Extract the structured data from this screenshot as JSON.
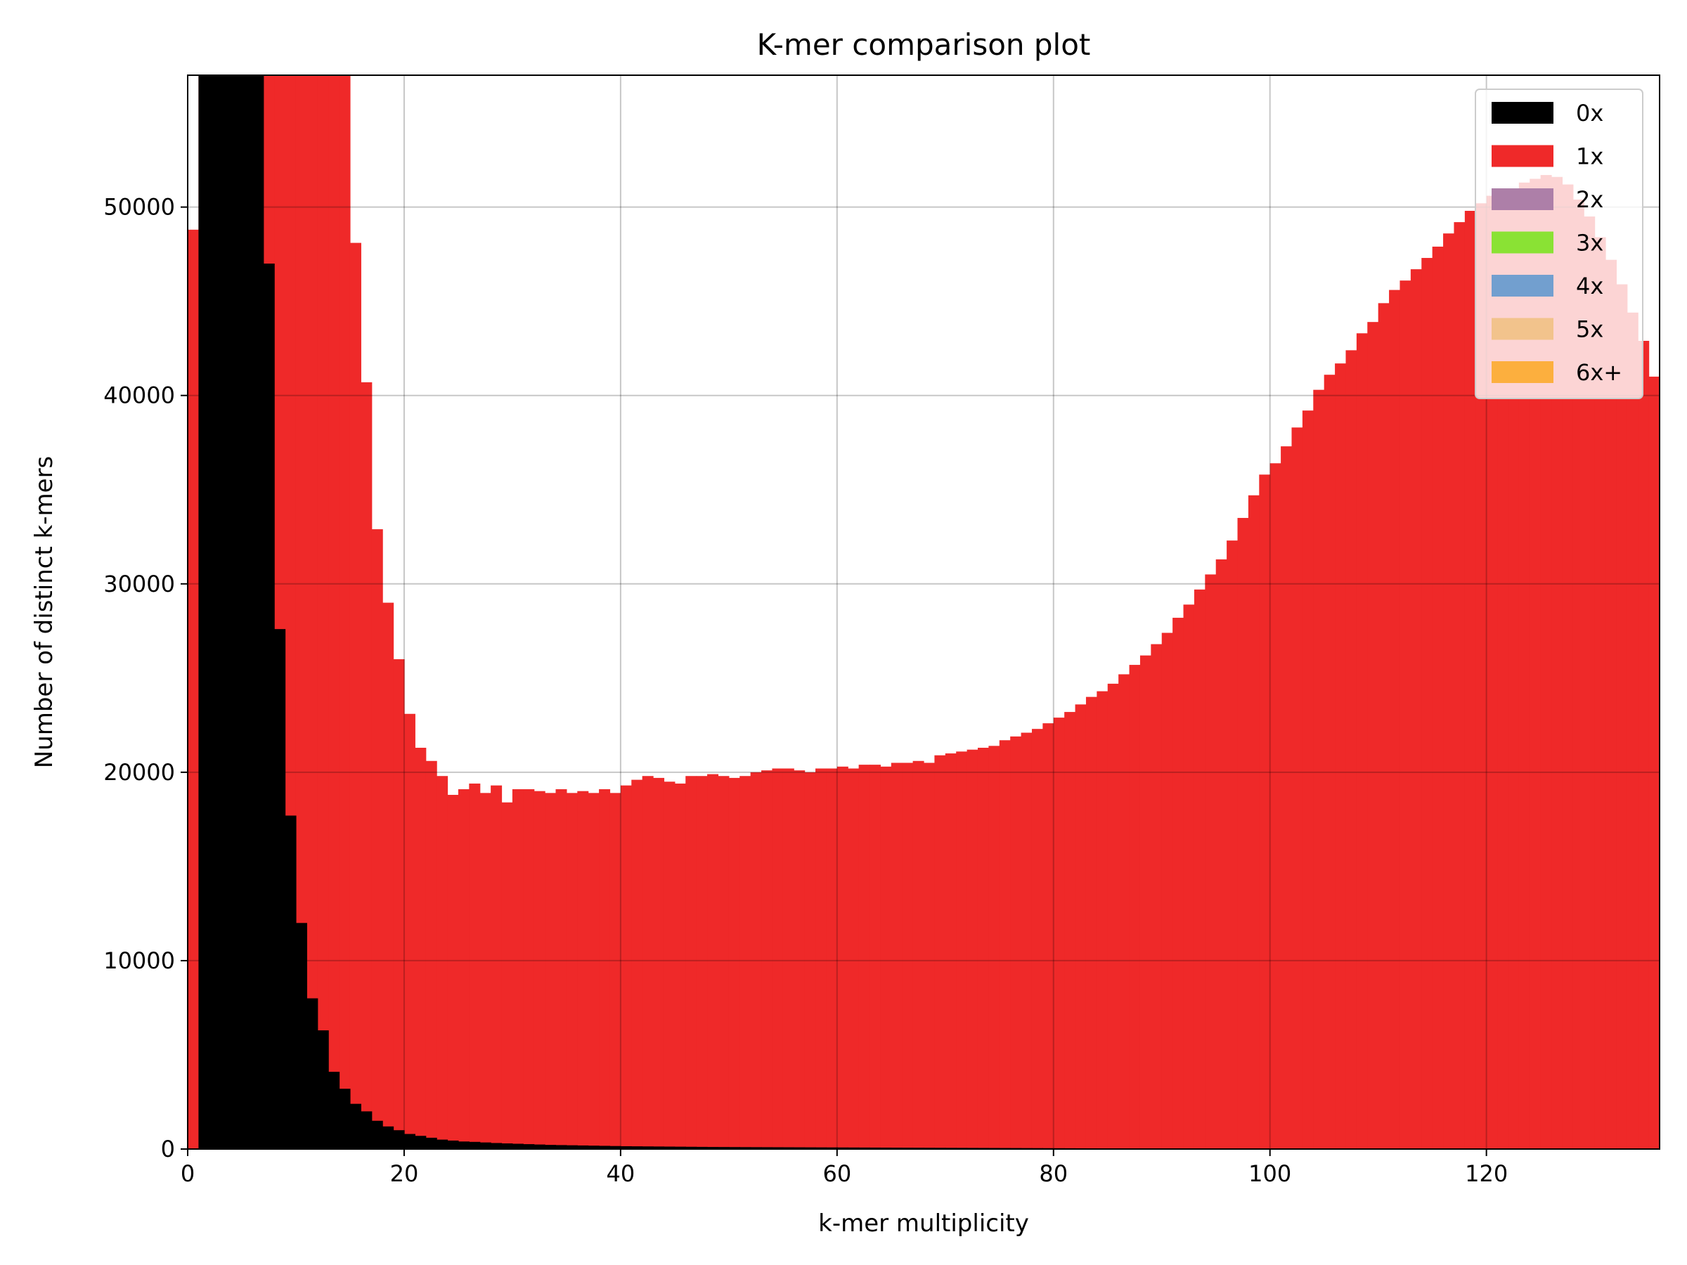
{
  "chart_data": {
    "type": "bar",
    "title": "K-mer comparison plot",
    "xlabel": "k-mer multiplicity",
    "ylabel": "Number of distinct k-mers",
    "xlim": [
      0,
      136
    ],
    "ylim": [
      0,
      57000
    ],
    "xticks": [
      0,
      20,
      40,
      60,
      80,
      100,
      120
    ],
    "yticks": [
      0,
      10000,
      20000,
      30000,
      40000,
      50000
    ],
    "grid": true,
    "stacked": true,
    "legend_position": "top-right",
    "legend": [
      "0x",
      "1x",
      "2x",
      "3x",
      "4x",
      "5x",
      "6x+"
    ],
    "series": [
      {
        "name": "0x",
        "color": "#000000",
        "x_start": 1,
        "values": [
          57000,
          57000,
          57000,
          57000,
          57000,
          57000,
          47000,
          27600,
          17700,
          12000,
          8000,
          6300,
          4100,
          3200,
          2400,
          2000,
          1500,
          1200,
          1000,
          800,
          700,
          600,
          500,
          450,
          400,
          380,
          350,
          320,
          300,
          280,
          260,
          240,
          220,
          210,
          200,
          190,
          180,
          170,
          160,
          150,
          145,
          140,
          135,
          130,
          125,
          120,
          115,
          110,
          108,
          105,
          102,
          100,
          98,
          96,
          94,
          92,
          90,
          88,
          86,
          84,
          82,
          80,
          78,
          76,
          74,
          72,
          70,
          68,
          66,
          64,
          62,
          60,
          58,
          56,
          54,
          52,
          50,
          48,
          46,
          44,
          42,
          40,
          38,
          36,
          34,
          32,
          30,
          30,
          30,
          30,
          30,
          30,
          30,
          30,
          30,
          30,
          30,
          30,
          30,
          30,
          30,
          30,
          30,
          30,
          30,
          30,
          30,
          30,
          30,
          30,
          30,
          30,
          30,
          30,
          30,
          30,
          30,
          30,
          30,
          30,
          30,
          30,
          30,
          30,
          30,
          30,
          30,
          30,
          30,
          30,
          30,
          30,
          30,
          30,
          30
        ]
      },
      {
        "name": "1x",
        "color": "#ef2929",
        "x_start": 0,
        "values": [
          48800,
          57000,
          57000,
          57000,
          57000,
          57000,
          57000,
          57000,
          57000,
          57000,
          57000,
          57000,
          57000,
          57000,
          57000,
          48100,
          40700,
          32900,
          29000,
          26000,
          23100,
          21300,
          20600,
          19800,
          18800,
          19100,
          19400,
          18900,
          19300,
          18400,
          19100,
          19100,
          19000,
          18900,
          19100,
          18900,
          19000,
          18900,
          19100,
          18900,
          19300,
          19600,
          19800,
          19700,
          19500,
          19400,
          19800,
          19800,
          19900,
          19800,
          19700,
          19800,
          20000,
          20100,
          20200,
          20200,
          20100,
          20000,
          20200,
          20200,
          20300,
          20200,
          20400,
          20400,
          20300,
          20500,
          20500,
          20600,
          20500,
          20900,
          21000,
          21100,
          21200,
          21300,
          21400,
          21700,
          21900,
          22100,
          22300,
          22600,
          22900,
          23200,
          23600,
          24000,
          24300,
          24700,
          25200,
          25700,
          26200,
          26800,
          27400,
          28200,
          28900,
          29700,
          30500,
          31300,
          32300,
          33500,
          34700,
          35800,
          36400,
          37300,
          38300,
          39200,
          40300,
          41100,
          41700,
          42400,
          43300,
          43900,
          44900,
          45600,
          46100,
          46700,
          47300,
          47900,
          48600,
          49200,
          49800,
          50200,
          50600,
          50600,
          50800,
          51300,
          51500,
          51700,
          51600,
          51200,
          50400,
          49500,
          48400,
          47200,
          45900,
          44400,
          42900,
          41000
        ]
      },
      {
        "name": "2x",
        "color": "#ad7fa8",
        "values": []
      },
      {
        "name": "3x",
        "color": "#8ae234",
        "values": []
      },
      {
        "name": "4x",
        "color": "#729fcf",
        "values": []
      },
      {
        "name": "5x",
        "color": "#f2c38c",
        "values": []
      },
      {
        "name": "6x+",
        "color": "#fcaf3e",
        "values": []
      }
    ]
  }
}
